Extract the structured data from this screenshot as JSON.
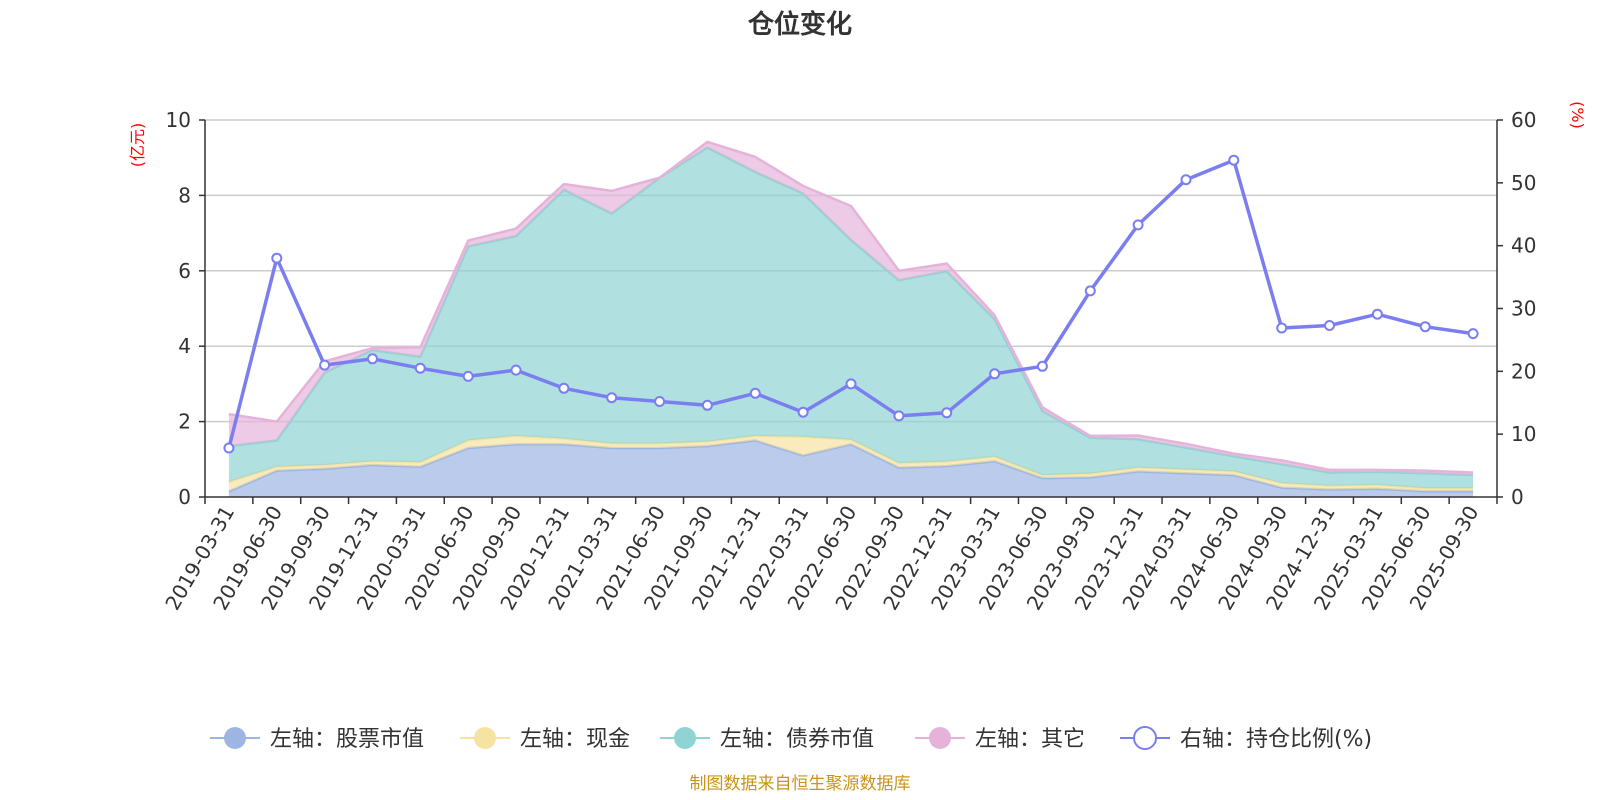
{
  "chart_data": {
    "type": "area",
    "title": "仓位变化",
    "left_axis_unit": "(亿元)",
    "right_axis_unit": "(%)",
    "left_ylim": [
      0,
      10
    ],
    "left_ticks": [
      0,
      2,
      4,
      6,
      8,
      10
    ],
    "right_ylim": [
      0,
      60
    ],
    "right_ticks": [
      0,
      10,
      20,
      30,
      40,
      50,
      60
    ],
    "categories": [
      "2019-03-31",
      "2019-06-30",
      "2019-09-30",
      "2019-12-31",
      "2020-03-31",
      "2020-06-30",
      "2020-09-30",
      "2020-12-31",
      "2021-03-31",
      "2021-06-30",
      "2021-09-30",
      "2021-12-31",
      "2022-03-31",
      "2022-06-30",
      "2022-09-30",
      "2022-12-31",
      "2023-03-31",
      "2023-06-30",
      "2023-09-30",
      "2023-12-31",
      "2024-03-31",
      "2024-06-30",
      "2024-09-30",
      "2024-12-31",
      "2025-03-31",
      "2025-06-30",
      "2025-09-30"
    ],
    "stacked_series": [
      {
        "name": "左轴：股票市值",
        "color": "#9db5e2",
        "values": [
          0.15,
          0.7,
          0.75,
          0.85,
          0.8,
          1.3,
          1.4,
          1.4,
          1.3,
          1.3,
          1.35,
          1.5,
          1.1,
          1.4,
          0.78,
          0.82,
          0.95,
          0.5,
          0.52,
          0.68,
          0.63,
          0.58,
          0.25,
          0.2,
          0.22,
          0.15,
          0.15
        ]
      },
      {
        "name": "左轴：现金",
        "color": "#f6e3a1",
        "values": [
          0.25,
          0.1,
          0.1,
          0.1,
          0.12,
          0.2,
          0.22,
          0.15,
          0.12,
          0.12,
          0.12,
          0.12,
          0.5,
          0.12,
          0.12,
          0.12,
          0.12,
          0.08,
          0.1,
          0.1,
          0.1,
          0.1,
          0.12,
          0.1,
          0.1,
          0.08,
          0.08
        ]
      },
      {
        "name": "左轴：债券市值",
        "color": "#8fd3d3",
        "values": [
          0.95,
          0.7,
          2.45,
          2.95,
          2.8,
          5.15,
          5.3,
          6.6,
          6.1,
          7.05,
          7.8,
          7.0,
          6.45,
          5.3,
          4.85,
          5.05,
          3.65,
          1.7,
          0.95,
          0.75,
          0.58,
          0.4,
          0.5,
          0.35,
          0.35,
          0.4,
          0.35
        ]
      },
      {
        "name": "左轴：其它",
        "color": "#e5b3da",
        "values": [
          0.85,
          0.5,
          0.3,
          0.05,
          0.25,
          0.15,
          0.2,
          0.15,
          0.6,
          0.0,
          0.15,
          0.4,
          0.2,
          0.9,
          0.25,
          0.2,
          0.1,
          0.1,
          0.05,
          0.1,
          0.1,
          0.07,
          0.1,
          0.07,
          0.05,
          0.07,
          0.07
        ]
      }
    ],
    "line_series": {
      "name": "右轴：持仓比例(%)",
      "color": "#7a7ef0",
      "axis": "right",
      "values": [
        7.8,
        38.0,
        21.0,
        22.0,
        20.5,
        19.2,
        20.2,
        17.3,
        15.8,
        15.2,
        14.6,
        16.5,
        13.5,
        18.0,
        12.9,
        13.4,
        19.6,
        20.8,
        32.8,
        43.3,
        50.5,
        53.6,
        26.9,
        27.3,
        29.1,
        27.1,
        26.0
      ]
    },
    "legend": [
      "左轴：股票市值",
      "左轴：现金",
      "左轴：债券市值",
      "左轴：其它",
      "右轴：持仓比例(%)"
    ],
    "legend_position": "bottom",
    "grid": true
  },
  "footer": {
    "source": "制图数据来自恒生聚源数据库"
  }
}
